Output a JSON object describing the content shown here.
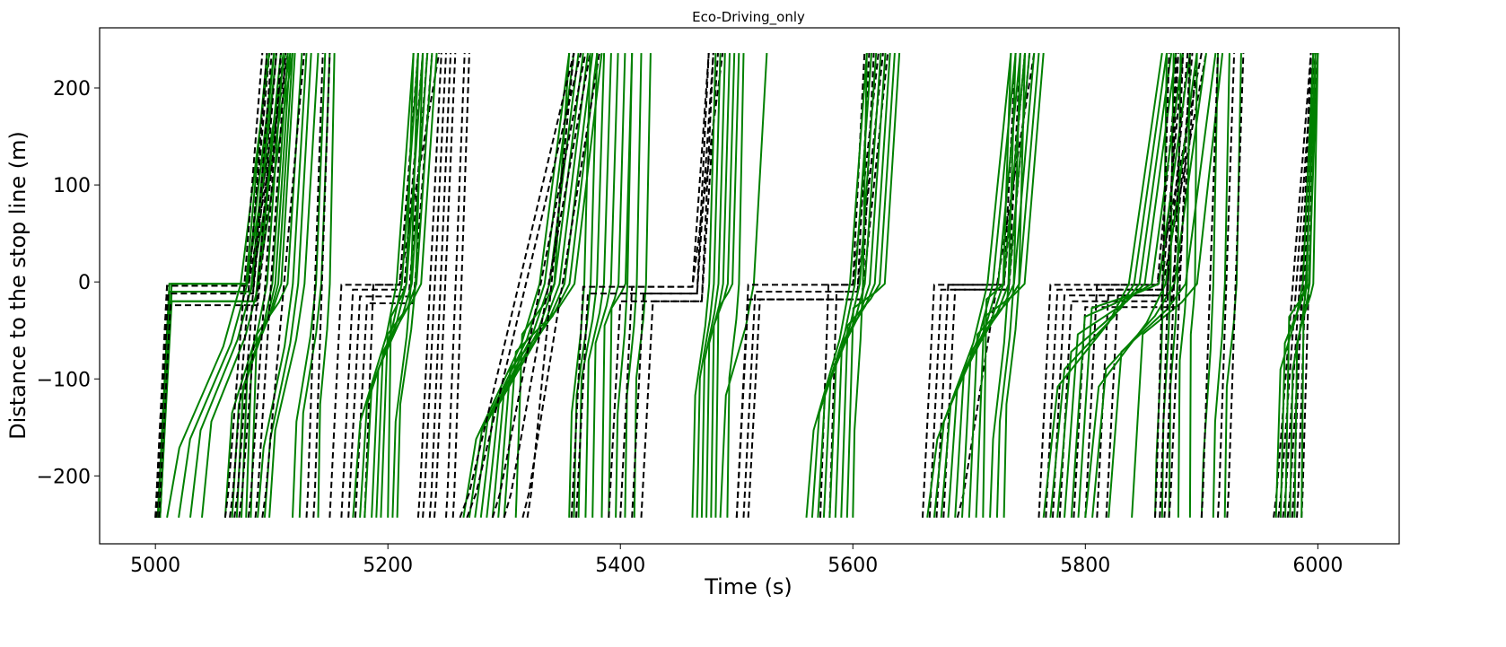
{
  "chart_data": {
    "type": "line",
    "title": "Eco-Driving_only",
    "xlabel": "Time (s)",
    "ylabel": "Distance to the stop line (m)",
    "xlim": [
      4952,
      6070
    ],
    "ylim": [
      -270,
      262
    ],
    "xticks": [
      5000,
      5200,
      5400,
      5600,
      5800,
      6000
    ],
    "yticks": [
      200,
      100,
      0,
      -100,
      -200
    ],
    "xtick_labels": [
      "5000",
      "5200",
      "5400",
      "5600",
      "5800",
      "6000"
    ],
    "ytick_labels": [
      "200",
      "100",
      "0",
      "−100",
      "−200"
    ],
    "grid": false,
    "series_styles": [
      {
        "group": "solid",
        "color": "#008000",
        "dash": "solid"
      },
      {
        "group": "dashed",
        "color": "#000000",
        "dash": "dashed"
      }
    ],
    "trajectory_groups": [
      {
        "style": "solid",
        "t0": [
          5002,
          5004
        ],
        "queue_stop": [
          -2,
          -10,
          -20
        ],
        "stop_end": [
          5078,
          5082,
          5086
        ],
        "climb_end": [
          5096,
          5102,
          5108,
          5112,
          5116,
          5118
        ]
      },
      {
        "style": "dashed",
        "t0": [
          5000,
          5001,
          5003
        ],
        "queue_stop": [
          -4,
          -12,
          -24
        ],
        "stop_end": [
          5080,
          5084,
          5088
        ],
        "climb_end": [
          5098,
          5104,
          5110,
          5114
        ]
      },
      {
        "style": "solid",
        "t0": [
          5010,
          5020,
          5030,
          5040,
          5060,
          5066,
          5070,
          5074,
          5078,
          5082,
          5088,
          5094,
          5098,
          5118,
          5124,
          5140
        ],
        "approach_mid": [
          -190,
          -180,
          -170,
          -160,
          -150,
          -140,
          -120,
          -100,
          -80,
          -60
        ],
        "climb_end": [
          5098,
          5102,
          5104,
          5108,
          5110,
          5114,
          5116,
          5118,
          5120,
          5126,
          5130,
          5134,
          5140,
          5146,
          5150
        ]
      },
      {
        "style": "dashed",
        "t0": [
          5060,
          5064,
          5068,
          5072,
          5080,
          5086,
          5092,
          5130,
          5136
        ],
        "queue_stop": [
          -30
        ],
        "climb_end": [
          5092,
          5096,
          5100,
          5104,
          5108,
          5112,
          5128,
          5134,
          5140
        ]
      },
      {
        "style": "dashed",
        "t0": [
          5150,
          5160,
          5166,
          5172,
          5180
        ],
        "queue_stop": [
          -3,
          -8,
          -15,
          -22
        ],
        "stop_end": [
          5210,
          5214,
          5218,
          5222
        ],
        "climb_end": [
          5226,
          5230,
          5234,
          5238,
          5244
        ]
      },
      {
        "style": "solid",
        "t0": [
          5170,
          5176,
          5180,
          5186,
          5190,
          5194,
          5200,
          5204,
          5208
        ],
        "approach_mid": [
          -160,
          -140,
          -120,
          -100,
          -80,
          -60,
          -40
        ],
        "climb_end": [
          5222,
          5226,
          5230,
          5234,
          5238,
          5242
        ]
      },
      {
        "style": "dashed",
        "t0": [
          5226,
          5230,
          5236,
          5240,
          5250,
          5256
        ],
        "climb_end": [
          5246,
          5250,
          5254,
          5258,
          5266
        ]
      },
      {
        "style": "solid",
        "t0": [
          5265,
          5270,
          5275,
          5280,
          5285,
          5290,
          5295,
          5300,
          5310
        ],
        "approach_mid": [
          -180,
          -170,
          -160,
          -150,
          -140,
          -120,
          -100,
          -80,
          -60
        ],
        "climb_end": [
          5356,
          5360,
          5364,
          5368,
          5372,
          5376,
          5380,
          5384
        ]
      },
      {
        "style": "dashed",
        "t0": [
          5262,
          5268,
          5290,
          5300,
          5316,
          5320
        ],
        "climb_end": [
          5360,
          5366,
          5370,
          5374,
          5382
        ]
      },
      {
        "style": "solid",
        "t0": [
          5356,
          5360,
          5364,
          5370,
          5376,
          5384,
          5390,
          5396,
          5404,
          5412
        ],
        "approach_mid": [
          -150,
          -130,
          -110,
          -90,
          -70,
          -50,
          -30
        ],
        "climb_end": [
          5374,
          5380,
          5386,
          5392,
          5398,
          5404,
          5410
        ]
      },
      {
        "style": "dashed",
        "t0": [
          5358,
          5362,
          5390,
          5400,
          5410,
          5418
        ],
        "queue_stop": [
          -5,
          -12,
          -20
        ],
        "stop_end": [
          5462,
          5466,
          5470
        ],
        "climb_end": [
          5476,
          5480,
          5484,
          5488
        ]
      },
      {
        "style": "solid",
        "t0": [
          5462,
          5466,
          5470,
          5474,
          5478,
          5482,
          5486,
          5492
        ],
        "approach_mid": [
          -130,
          -110,
          -90,
          -70,
          -50,
          -30
        ],
        "climb_end": [
          5482,
          5486,
          5490,
          5494,
          5498,
          5502,
          5526
        ]
      },
      {
        "style": "dashed",
        "t0": [
          5500,
          5506,
          5510,
          5572,
          5580
        ],
        "queue_stop": [
          -3,
          -10,
          -18
        ],
        "stop_end": [
          5600,
          5604,
          5608
        ],
        "climb_end": [
          5610,
          5614,
          5618,
          5622,
          5626,
          5630
        ]
      },
      {
        "style": "solid",
        "t0": [
          5560,
          5565,
          5570,
          5575,
          5580,
          5585,
          5590,
          5595,
          5600
        ],
        "approach_mid": [
          -170,
          -150,
          -130,
          -110,
          -90,
          -70,
          -50,
          -30
        ],
        "climb_end": [
          5612,
          5616,
          5620,
          5624,
          5628,
          5632,
          5636,
          5640
        ]
      },
      {
        "style": "dashed",
        "t0": [
          5660,
          5666,
          5672,
          5678,
          5690
        ],
        "queue_stop": [
          -3,
          -8
        ],
        "stop_end": [
          5730,
          5734
        ],
        "climb_end": [
          5740,
          5744,
          5748,
          5752,
          5756
        ]
      },
      {
        "style": "solid",
        "t0": [
          5664,
          5670,
          5676,
          5682,
          5688,
          5694,
          5700,
          5706,
          5712,
          5718,
          5724,
          5730
        ],
        "approach_mid": [
          -180,
          -160,
          -140,
          -120,
          -100,
          -80,
          -60,
          -40,
          -20
        ],
        "climb_end": [
          5736,
          5740,
          5744,
          5748,
          5752,
          5756,
          5760,
          5764
        ]
      },
      {
        "style": "dashed",
        "t0": [
          5760,
          5766,
          5772,
          5778,
          5790,
          5800,
          5810,
          5818
        ],
        "queue_stop": [
          -3,
          -8,
          -14,
          -20,
          -26
        ],
        "stop_end": [
          5862,
          5866,
          5870,
          5874,
          5878
        ],
        "climb_end": [
          5880,
          5884,
          5888,
          5892,
          5896,
          5900,
          5904
        ]
      },
      {
        "style": "solid",
        "t0": [
          5764,
          5770,
          5776,
          5782,
          5788,
          5794,
          5800,
          5806,
          5820,
          5840
        ],
        "approach_mid": [
          -120,
          -100,
          -80,
          -60,
          -40,
          -30
        ],
        "climb_end": [
          5866,
          5870,
          5874,
          5878,
          5884,
          5890,
          5896,
          5904,
          5912,
          5918
        ]
      },
      {
        "style": "solid",
        "t0": [
          5860,
          5866,
          5872,
          5880,
          5890,
          5900,
          5910,
          5920
        ],
        "approach_mid": [
          -200,
          -160,
          -120,
          -90,
          -60
        ],
        "climb_end": [
          5870,
          5876,
          5882,
          5890,
          5896,
          5904
        ]
      },
      {
        "style": "dashed",
        "t0": [
          5860,
          5864,
          5868,
          5872,
          5900,
          5914,
          5922
        ],
        "climb_end": [
          5872,
          5878,
          5884,
          5890,
          5896
        ]
      },
      {
        "style": "dashed",
        "t0": [
          5962,
          5966,
          5970,
          5974,
          5978,
          5982,
          5986
        ],
        "climb_end": [
          5994,
          5996,
          5998,
          6000
        ]
      },
      {
        "style": "solid",
        "t0": [
          5964,
          5968,
          5972,
          5976,
          5980,
          5986
        ],
        "approach_mid": [
          -100,
          -70,
          -40
        ],
        "climb_end": [
          5996,
          5998,
          6000
        ]
      }
    ]
  }
}
